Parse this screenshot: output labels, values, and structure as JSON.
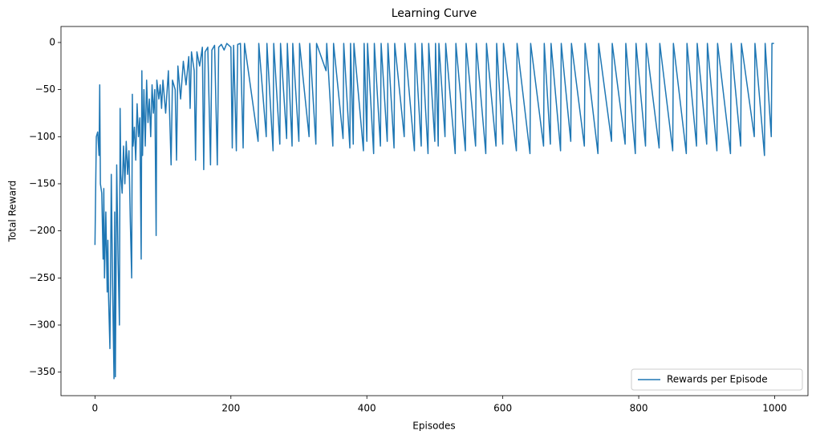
{
  "chart_data": {
    "type": "line",
    "title": "Learning Curve",
    "x_label": "Episodes",
    "y_label": "Total Reward",
    "x": [
      0,
      2,
      4,
      6,
      7,
      8,
      10,
      12,
      13,
      14,
      16,
      18,
      19,
      20,
      22,
      23,
      24,
      26,
      28,
      29,
      30,
      32,
      34,
      36,
      37,
      38,
      40,
      42,
      44,
      46,
      48,
      50,
      52,
      54,
      55,
      56,
      58,
      60,
      62,
      64,
      66,
      68,
      69,
      70,
      72,
      74,
      76,
      78,
      80,
      82,
      84,
      86,
      88,
      90,
      91,
      94,
      96,
      98,
      100,
      104,
      108,
      112,
      114,
      118,
      120,
      122,
      126,
      130,
      134,
      138,
      140,
      142,
      146,
      148,
      150,
      154,
      158,
      160,
      162,
      166,
      170,
      172,
      176,
      180,
      182,
      186,
      190,
      194,
      200,
      202,
      204,
      208,
      210,
      214,
      218,
      220,
      240,
      241,
      252,
      253,
      262,
      263,
      272,
      273,
      282,
      283,
      290,
      291,
      300,
      301,
      315,
      316,
      325,
      326,
      340,
      341,
      350,
      351,
      365,
      366,
      375,
      376,
      380,
      381,
      395,
      396,
      400,
      401,
      410,
      411,
      420,
      421,
      430,
      431,
      440,
      441,
      455,
      456,
      470,
      471,
      480,
      481,
      490,
      491,
      500,
      501,
      505,
      506,
      515,
      516,
      530,
      531,
      545,
      546,
      560,
      561,
      575,
      576,
      590,
      591,
      600,
      601,
      620,
      621,
      640,
      641,
      660,
      661,
      670,
      671,
      685,
      686,
      700,
      701,
      720,
      721,
      740,
      741,
      760,
      761,
      780,
      781,
      795,
      796,
      810,
      811,
      830,
      831,
      850,
      851,
      870,
      871,
      885,
      886,
      900,
      901,
      915,
      916,
      935,
      936,
      950,
      951,
      970,
      971,
      985,
      986,
      995,
      996,
      999
    ],
    "series": [
      {
        "name": "Rewards per Episode",
        "color": "#1f77b4",
        "values": [
          -215,
          -100,
          -95,
          -120,
          -45,
          -150,
          -160,
          -230,
          -155,
          -250,
          -180,
          -265,
          -210,
          -270,
          -325,
          -240,
          -140,
          -260,
          -357,
          -180,
          -355,
          -130,
          -230,
          -300,
          -70,
          -140,
          -160,
          -110,
          -150,
          -105,
          -140,
          -115,
          -190,
          -250,
          -55,
          -110,
          -90,
          -125,
          -65,
          -100,
          -80,
          -230,
          -30,
          -120,
          -50,
          -110,
          -40,
          -85,
          -60,
          -100,
          -45,
          -75,
          -50,
          -205,
          -40,
          -60,
          -45,
          -70,
          -40,
          -75,
          -30,
          -130,
          -40,
          -50,
          -125,
          -25,
          -60,
          -20,
          -45,
          -15,
          -70,
          -10,
          -30,
          -125,
          -10,
          -25,
          -5,
          -135,
          -10,
          -5,
          -130,
          -8,
          -3,
          -130,
          -5,
          -2,
          -8,
          -1,
          -5,
          -112,
          -3,
          -115,
          -2,
          -1,
          -112,
          -1,
          -105,
          -1,
          -100,
          -1,
          -115,
          -1,
          -108,
          -1,
          -102,
          -1,
          -110,
          -1,
          -105,
          -1,
          -100,
          -1,
          -108,
          -1,
          -30,
          -1,
          -110,
          -1,
          -102,
          -1,
          -112,
          -1,
          -108,
          -1,
          -115,
          -1,
          -105,
          -1,
          -118,
          -1,
          -110,
          -1,
          -105,
          -1,
          -112,
          -1,
          -100,
          -1,
          -115,
          -1,
          -110,
          -1,
          -118,
          -1,
          -105,
          -1,
          -110,
          -1,
          -100,
          -1,
          -118,
          -1,
          -115,
          -1,
          -110,
          -1,
          -118,
          -1,
          -110,
          -1,
          -108,
          -1,
          -115,
          -1,
          -118,
          -1,
          -110,
          -1,
          -108,
          -1,
          -115,
          -1,
          -105,
          -1,
          -110,
          -1,
          -118,
          -1,
          -105,
          -1,
          -108,
          -1,
          -118,
          -1,
          -110,
          -1,
          -112,
          -1,
          -115,
          -1,
          -118,
          -1,
          -110,
          -1,
          -108,
          -1,
          -115,
          -1,
          -118,
          -1,
          -110,
          -1,
          -100,
          -1,
          -120,
          -1,
          -100,
          -1,
          -1
        ]
      }
    ],
    "xlim": [
      -50,
      1049
    ],
    "xticks": [
      0,
      200,
      400,
      600,
      800,
      1000
    ],
    "ylim": [
      -375,
      17
    ],
    "yticks": [
      0,
      {
        "value": -50,
        "label": "−50"
      },
      {
        "value": -100,
        "label": "−100"
      },
      {
        "value": -150,
        "label": "−150"
      },
      {
        "value": -200,
        "label": "−200"
      },
      {
        "value": -250,
        "label": "−250"
      },
      {
        "value": -300,
        "label": "−300"
      },
      {
        "value": -350,
        "label": "−350"
      }
    ],
    "grid": false,
    "legend": "lower right"
  }
}
